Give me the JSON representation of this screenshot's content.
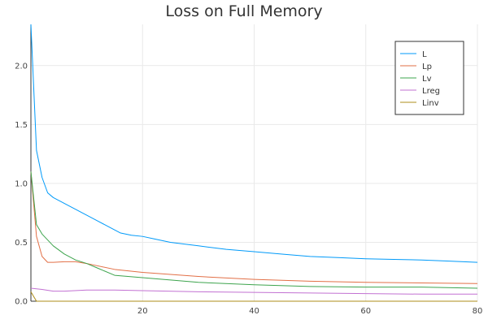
{
  "chart_data": {
    "type": "line",
    "title": "Loss on Full Memory",
    "xlabel": "",
    "ylabel": "",
    "xlim": [
      0,
      80
    ],
    "ylim": [
      0,
      2.35
    ],
    "xticks": [
      20,
      40,
      60,
      80
    ],
    "yticks": [
      0.0,
      0.5,
      1.0,
      1.5,
      2.0
    ],
    "ytick_labels": [
      "0.0",
      "0.5",
      "1.0",
      "1.5",
      "2.0"
    ],
    "grid": true,
    "legend_position": "top-right",
    "series": [
      {
        "name": "L",
        "color": "#009af9",
        "x": [
          0,
          1,
          2,
          3,
          4,
          6,
          8,
          10,
          12,
          14,
          16,
          18,
          20,
          22,
          25,
          30,
          35,
          40,
          45,
          50,
          55,
          60,
          65,
          70,
          75,
          80
        ],
        "y": [
          2.35,
          1.28,
          1.05,
          0.92,
          0.88,
          0.83,
          0.78,
          0.73,
          0.68,
          0.63,
          0.58,
          0.56,
          0.55,
          0.53,
          0.5,
          0.47,
          0.44,
          0.42,
          0.4,
          0.38,
          0.37,
          0.36,
          0.355,
          0.35,
          0.34,
          0.33
        ]
      },
      {
        "name": "Lp",
        "color": "#e26f46",
        "x": [
          0,
          1,
          2,
          3,
          4,
          6,
          8,
          10,
          15,
          20,
          30,
          40,
          50,
          60,
          70,
          80
        ],
        "y": [
          1.1,
          0.55,
          0.38,
          0.33,
          0.33,
          0.335,
          0.335,
          0.32,
          0.27,
          0.245,
          0.21,
          0.185,
          0.17,
          0.16,
          0.155,
          0.15
        ]
      },
      {
        "name": "Lv",
        "color": "#3da44d",
        "x": [
          0,
          1,
          2,
          3,
          4,
          6,
          8,
          10,
          12,
          15,
          20,
          25,
          30,
          40,
          50,
          60,
          70,
          80
        ],
        "y": [
          1.1,
          0.65,
          0.57,
          0.52,
          0.47,
          0.4,
          0.35,
          0.32,
          0.28,
          0.22,
          0.2,
          0.18,
          0.16,
          0.14,
          0.125,
          0.12,
          0.12,
          0.11
        ]
      },
      {
        "name": "Lreg",
        "color": "#c271d2",
        "x": [
          0,
          2,
          4,
          6,
          10,
          15,
          20,
          30,
          40,
          50,
          60,
          70,
          80
        ],
        "y": [
          0.11,
          0.1,
          0.085,
          0.085,
          0.095,
          0.095,
          0.09,
          0.08,
          0.075,
          0.07,
          0.065,
          0.06,
          0.06
        ]
      },
      {
        "name": "Linv",
        "color": "#ac8d18",
        "x": [
          0,
          0.5,
          1,
          2,
          5,
          20,
          40,
          60,
          80
        ],
        "y": [
          0.08,
          0.04,
          0.0,
          0.0,
          0.0,
          0.0,
          0.0,
          0.0,
          0.0
        ]
      }
    ]
  }
}
